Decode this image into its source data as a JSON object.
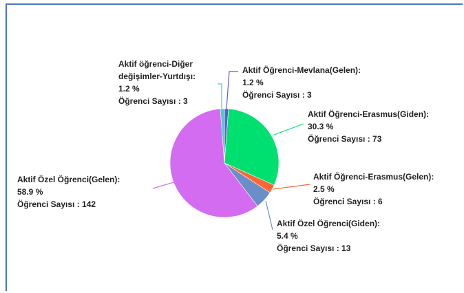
{
  "chart_data": {
    "type": "pie",
    "labels": [
      "Aktif Öğrenci-Mevlana(Gelen):",
      "Aktif Öğrenci-Erasmus(Giden):",
      "Aktif Öğrenci-Erasmus(Gelen):",
      "Aktif Özel Öğrenci(Giden):",
      "Aktif Özel Öğrenci(Gelen):",
      "Aktif öğrenci-Diğer değişimler-Yurtdışı:"
    ],
    "values": [
      1.2,
      30.3,
      2.5,
      5.4,
      58.9,
      1.2
    ],
    "value_labels": [
      "1.2 %",
      "30.3 %",
      "2.5 %",
      "5.4 %",
      "58.9 %",
      "1.2 %"
    ],
    "counts": [
      3,
      73,
      6,
      13,
      142,
      3
    ],
    "count_labels": [
      "Öğrenci Sayısı : 3",
      "Öğrenci Sayısı : 73",
      "Öğrenci Sayısı : 6",
      "Öğrenci Sayısı : 13",
      "Öğrenci Sayısı : 142",
      "Öğrenci Sayısı : 3"
    ],
    "colors": [
      "#5a5ad8",
      "#00e070",
      "#ff6633",
      "#6a8fc8",
      "#d46cf2",
      "#3fcfcf"
    ]
  }
}
